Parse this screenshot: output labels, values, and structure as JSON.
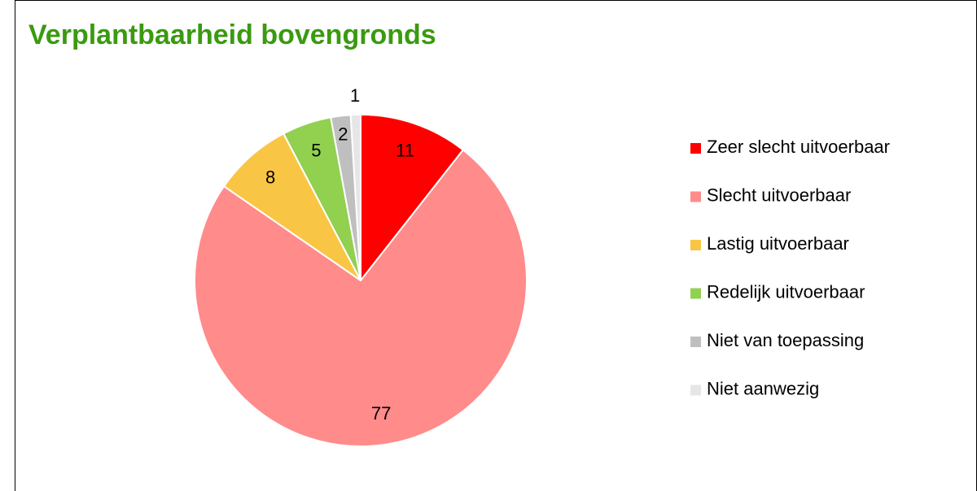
{
  "chart_data": {
    "type": "pie",
    "title": "Verplantbaarheid bovengronds",
    "categories": [
      "Zeer slecht uitvoerbaar",
      "Slecht uitvoerbaar",
      "Lastig uitvoerbaar",
      "Redelijk uitvoerbaar",
      "Niet van toepassing",
      "Niet aanwezig"
    ],
    "values": [
      11,
      77,
      8,
      5,
      2,
      1
    ],
    "colors": [
      "#ff0000",
      "#ff8b8b",
      "#f9c544",
      "#92d050",
      "#bfbfbf",
      "#e6e6e6"
    ],
    "legend": "right"
  }
}
